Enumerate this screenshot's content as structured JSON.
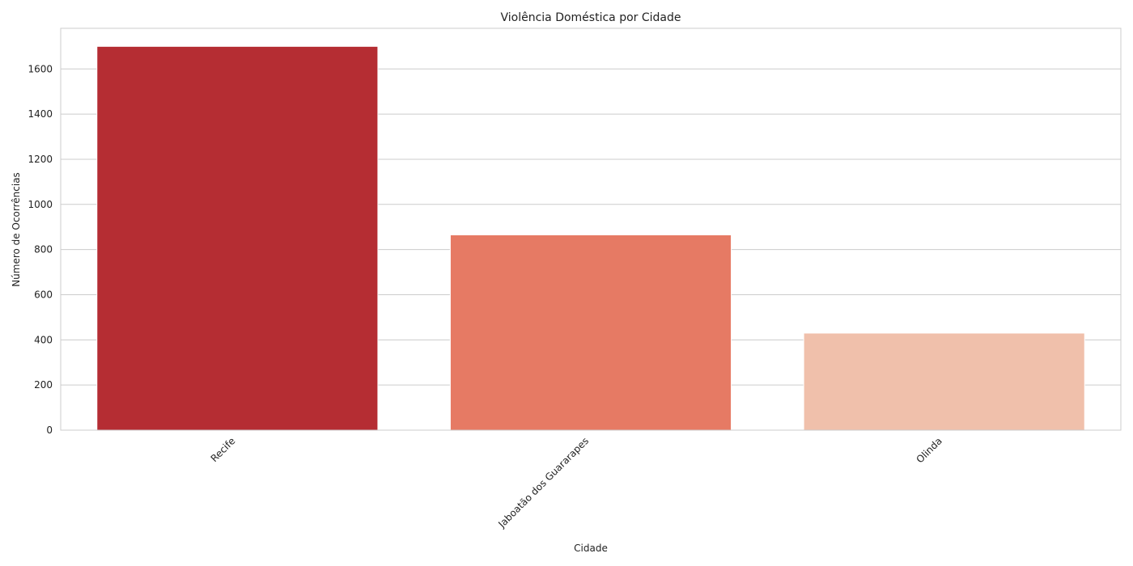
{
  "chart_data": {
    "type": "bar",
    "title": "Violência Doméstica por Cidade",
    "xlabel": "Cidade",
    "ylabel": "Número de Ocorrências",
    "categories": [
      "Recife",
      "Jaboatão dos Guararapes",
      "Olinda"
    ],
    "values": [
      1700,
      865,
      430
    ],
    "colors": [
      "#b52d33",
      "#e67a64",
      "#f0c0ab"
    ],
    "ylim": [
      0,
      1780
    ],
    "yticks": [
      0,
      200,
      400,
      600,
      800,
      1000,
      1200,
      1400,
      1600
    ],
    "grid": true,
    "legend": "none"
  }
}
